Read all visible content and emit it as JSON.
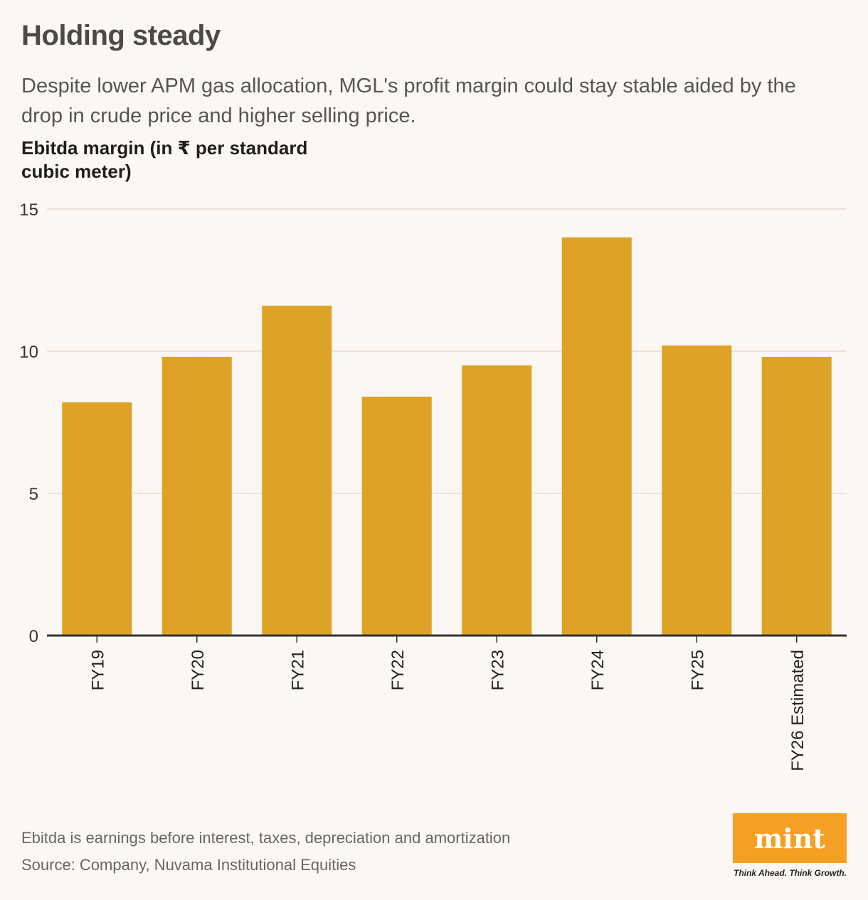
{
  "header": {
    "title": "Holding steady",
    "subtitle": "Despite lower APM gas allocation, MGL's profit margin could stay stable aided by the drop in crude price and higher selling price.",
    "unit_label": "Ebitda margin (in ₹ per standard cubic meter)"
  },
  "footer": {
    "note": "Ebitda is earnings before interest, taxes, depreciation and amortization",
    "source": "Source: Company, Nuvama Institutional Equities"
  },
  "brand": {
    "logo_text": "mint",
    "tagline": "Think Ahead. Think Growth.",
    "logo_color": "#f5a024"
  },
  "colors": {
    "bar": "#dea226",
    "gridline": "#e3dcd5",
    "axis": "#333333"
  },
  "chart_data": {
    "type": "bar",
    "title": "Holding steady",
    "ylabel": "Ebitda margin (in ₹ per standard cubic meter)",
    "xlabel": "",
    "categories": [
      "FY19",
      "FY20",
      "FY21",
      "FY22",
      "FY23",
      "FY24",
      "FY25",
      "FY26 Estimated"
    ],
    "values": [
      8.2,
      9.8,
      11.6,
      8.4,
      9.5,
      14.0,
      10.2,
      9.8
    ],
    "ylim": [
      0,
      15
    ],
    "yticks": [
      0,
      5,
      10,
      15
    ],
    "grid": true,
    "legend": "none"
  }
}
